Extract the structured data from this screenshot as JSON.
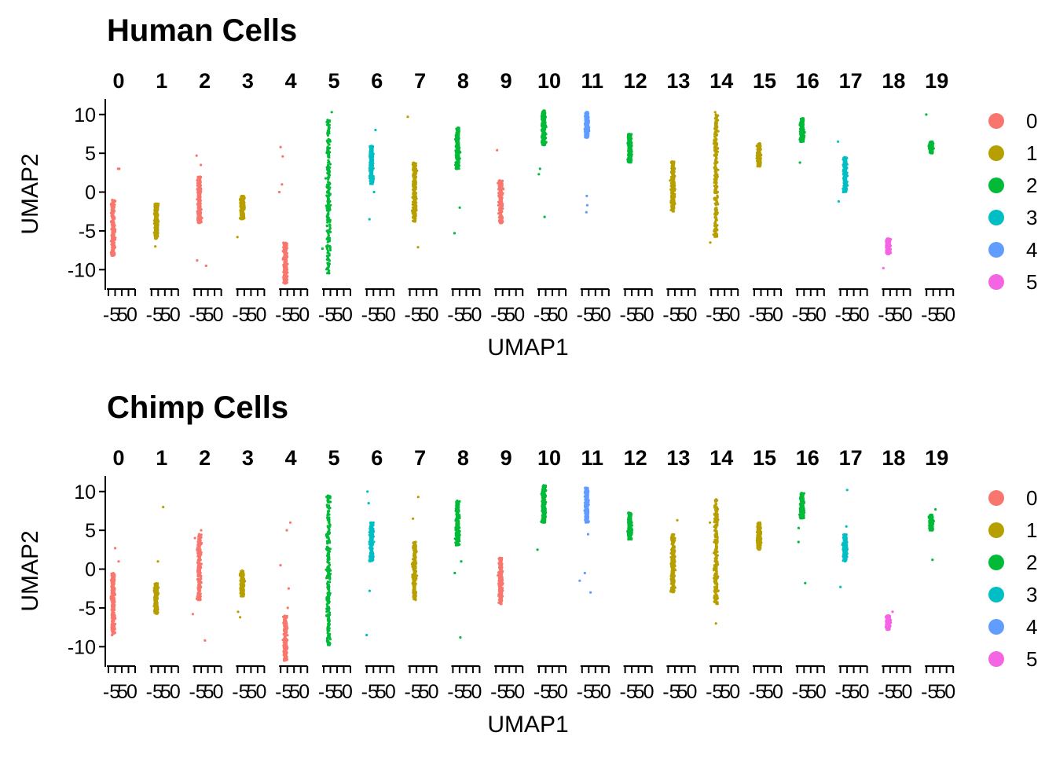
{
  "chart_data": [
    {
      "type": "scatter",
      "title": "Human Cells",
      "xlabel": "UMAP1",
      "ylabel": "UMAP2",
      "facets": [
        "0",
        "1",
        "2",
        "3",
        "4",
        "5",
        "6",
        "7",
        "8",
        "9",
        "10",
        "11",
        "12",
        "13",
        "14",
        "15",
        "16",
        "17",
        "18",
        "19"
      ],
      "ylim": [
        -12.5,
        12
      ],
      "y_ticks": [
        10,
        5,
        0,
        -5,
        -10
      ],
      "x_tick_labels": [
        "-5",
        "5",
        "0",
        "-5",
        "5",
        "0",
        "-5",
        "5",
        "0",
        "-5",
        "5",
        "0",
        "-5",
        "5",
        "0",
        "-5",
        "5",
        "0",
        "-5",
        "5",
        "0",
        "-5",
        "5",
        "0",
        "-5",
        "5",
        "0",
        "-5",
        "5",
        "0",
        "-5",
        "5",
        "0",
        "-5",
        "5",
        "0",
        "-5",
        "5",
        "0",
        "-5",
        "5",
        "0",
        "-5",
        "5",
        "0",
        "-5",
        "5",
        "0",
        "-5",
        "5",
        "0",
        "-5",
        "5",
        "0",
        "-5",
        "5",
        "0",
        "-5",
        "5",
        "0"
      ],
      "legend": {
        "position": "right",
        "entries": [
          "0",
          "1",
          "2",
          "3",
          "4",
          "5"
        ]
      },
      "grid": false,
      "clusters": [
        {
          "facet": "0",
          "color": "#F8766D",
          "y": [
            -8.2,
            -1.0
          ],
          "extra_y": [
            3.0,
            3.0
          ]
        },
        {
          "facet": "1",
          "color": "#B79F00",
          "y": [
            -6.0,
            -1.5
          ],
          "extra_y": [
            -7.0
          ]
        },
        {
          "facet": "2",
          "color": "#F8766D",
          "y": [
            -4.0,
            2.0
          ],
          "extra_y": [
            4.7,
            3.5,
            -8.8,
            -9.5
          ]
        },
        {
          "facet": "3",
          "color": "#B79F00",
          "y": [
            -3.5,
            -0.5
          ],
          "extra_y": [
            -5.8
          ]
        },
        {
          "facet": "4",
          "color": "#F8766D",
          "y": [
            -11.8,
            -6.5
          ],
          "extra_y": [
            5.8,
            4.6,
            1.0,
            0.0
          ]
        },
        {
          "facet": "5",
          "color": "#00BA38",
          "y": [
            -10.5,
            9.5
          ],
          "extra_y": [
            10.3,
            -7.3
          ]
        },
        {
          "facet": "6",
          "color": "#00BFC4",
          "y": [
            1.0,
            6.0
          ],
          "extra_y": [
            8.0,
            -3.5,
            0.0
          ]
        },
        {
          "facet": "7",
          "color": "#B79F00",
          "y": [
            -3.8,
            3.8
          ],
          "extra_y": [
            9.7,
            -7.1
          ]
        },
        {
          "facet": "8",
          "color": "#00BA38",
          "y": [
            3.0,
            8.3
          ],
          "extra_y": [
            -2.0,
            -5.3
          ]
        },
        {
          "facet": "9",
          "color": "#F8766D",
          "y": [
            -4.0,
            1.5
          ],
          "extra_y": [
            5.4
          ]
        },
        {
          "facet": "10",
          "color": "#00BA38",
          "y": [
            6.0,
            10.5
          ],
          "extra_y": [
            3.0,
            2.3,
            -3.2
          ]
        },
        {
          "facet": "11",
          "color": "#619CFF",
          "y": [
            7.0,
            10.3
          ],
          "extra_y": [
            -0.5,
            -1.7,
            -2.6
          ]
        },
        {
          "facet": "12",
          "color": "#00BA38",
          "y": [
            3.8,
            7.5
          ],
          "extra_y": []
        },
        {
          "facet": "13",
          "color": "#B79F00",
          "y": [
            -2.5,
            4.0
          ],
          "extra_y": []
        },
        {
          "facet": "14",
          "color": "#B79F00",
          "y": [
            -5.8,
            10.0
          ],
          "extra_y": [
            10.3,
            -6.5
          ]
        },
        {
          "facet": "15",
          "color": "#B79F00",
          "y": [
            3.3,
            6.3
          ],
          "extra_y": []
        },
        {
          "facet": "16",
          "color": "#00BA38",
          "y": [
            6.5,
            9.5
          ],
          "extra_y": [
            3.8
          ]
        },
        {
          "facet": "17",
          "color": "#00BFC4",
          "y": [
            0.0,
            4.5
          ],
          "extra_y": [
            -1.2,
            6.5
          ]
        },
        {
          "facet": "18",
          "color": "#F564E3",
          "y": [
            -8.0,
            -6.0
          ],
          "extra_y": [
            -9.8
          ]
        },
        {
          "facet": "19",
          "color": "#00BA38",
          "y": [
            5.0,
            6.5
          ],
          "extra_y": [
            10.0
          ]
        }
      ]
    },
    {
      "type": "scatter",
      "title": "Chimp Cells",
      "xlabel": "UMAP1",
      "ylabel": "UMAP2",
      "facets": [
        "0",
        "1",
        "2",
        "3",
        "4",
        "5",
        "6",
        "7",
        "8",
        "9",
        "10",
        "11",
        "12",
        "13",
        "14",
        "15",
        "16",
        "17",
        "18",
        "19"
      ],
      "ylim": [
        -12.5,
        12
      ],
      "y_ticks": [
        10,
        5,
        0,
        -5,
        -10
      ],
      "x_tick_labels": [
        "-5",
        "5",
        "0",
        "-5",
        "5",
        "0",
        "-5",
        "5",
        "0",
        "-5",
        "5",
        "0",
        "-5",
        "5",
        "0",
        "-5",
        "5",
        "0",
        "-5",
        "5",
        "0",
        "-5",
        "5",
        "0",
        "-5",
        "5",
        "0",
        "-5",
        "5",
        "0",
        "-5",
        "5",
        "0",
        "-5",
        "5",
        "0",
        "-5",
        "5",
        "0",
        "-5",
        "5",
        "0",
        "-5",
        "5",
        "0",
        "-5",
        "5",
        "0",
        "-5",
        "5",
        "0",
        "-5",
        "5",
        "0",
        "-5",
        "5",
        "0",
        "-5",
        "5",
        "0"
      ],
      "legend": {
        "position": "right",
        "entries": [
          "0",
          "1",
          "2",
          "3",
          "4",
          "5"
        ]
      },
      "grid": false,
      "clusters": [
        {
          "facet": "0",
          "color": "#F8766D",
          "y": [
            -8.5,
            -0.5
          ],
          "extra_y": [
            2.7,
            1.0
          ]
        },
        {
          "facet": "1",
          "color": "#B79F00",
          "y": [
            -5.8,
            -1.8
          ],
          "extra_y": [
            8.0,
            1.0
          ]
        },
        {
          "facet": "2",
          "color": "#F8766D",
          "y": [
            -4.0,
            4.5
          ],
          "extra_y": [
            5.0,
            4.0,
            -5.8,
            -9.2
          ]
        },
        {
          "facet": "3",
          "color": "#B79F00",
          "y": [
            -3.5,
            -0.2
          ],
          "extra_y": [
            -5.5,
            -6.2
          ]
        },
        {
          "facet": "4",
          "color": "#F8766D",
          "y": [
            -11.8,
            -6.0
          ],
          "extra_y": [
            6.0,
            5.0,
            0.5,
            -2.5,
            -5.0
          ]
        },
        {
          "facet": "5",
          "color": "#00BA38",
          "y": [
            -9.8,
            9.5
          ],
          "extra_y": [
            -6.0
          ]
        },
        {
          "facet": "6",
          "color": "#00BFC4",
          "y": [
            1.0,
            6.0
          ],
          "extra_y": [
            10.0,
            8.5,
            -2.8,
            -8.5
          ]
        },
        {
          "facet": "7",
          "color": "#B79F00",
          "y": [
            -4.0,
            3.5
          ],
          "extra_y": [
            9.3,
            6.5
          ]
        },
        {
          "facet": "8",
          "color": "#00BA38",
          "y": [
            3.0,
            8.8
          ],
          "extra_y": [
            1.0,
            -0.5,
            -8.8
          ]
        },
        {
          "facet": "9",
          "color": "#F8766D",
          "y": [
            -4.5,
            1.5
          ],
          "extra_y": []
        },
        {
          "facet": "10",
          "color": "#00BA38",
          "y": [
            6.0,
            10.8
          ],
          "extra_y": [
            2.5
          ]
        },
        {
          "facet": "11",
          "color": "#619CFF",
          "y": [
            6.0,
            10.5
          ],
          "extra_y": [
            -0.5,
            -1.5,
            -3.0,
            4.5
          ]
        },
        {
          "facet": "12",
          "color": "#00BA38",
          "y": [
            3.8,
            7.3
          ],
          "extra_y": []
        },
        {
          "facet": "13",
          "color": "#B79F00",
          "y": [
            -3.0,
            4.5
          ],
          "extra_y": [
            6.3
          ]
        },
        {
          "facet": "14",
          "color": "#B79F00",
          "y": [
            -4.5,
            9.0
          ],
          "extra_y": [
            6.0,
            -7.0
          ]
        },
        {
          "facet": "15",
          "color": "#B79F00",
          "y": [
            2.5,
            6.0
          ],
          "extra_y": []
        },
        {
          "facet": "16",
          "color": "#00BA38",
          "y": [
            6.5,
            9.8
          ],
          "extra_y": [
            5.3,
            3.5,
            -1.8
          ]
        },
        {
          "facet": "17",
          "color": "#00BFC4",
          "y": [
            1.0,
            4.5
          ],
          "extra_y": [
            10.2,
            5.5,
            -2.3
          ]
        },
        {
          "facet": "18",
          "color": "#F564E3",
          "y": [
            -7.8,
            -6.0
          ],
          "extra_y": [
            -5.5
          ]
        },
        {
          "facet": "19",
          "color": "#00BA38",
          "y": [
            5.0,
            7.0
          ],
          "extra_y": [
            7.7,
            1.2
          ]
        }
      ]
    }
  ],
  "legend_colors": [
    "#F8766D",
    "#B79F00",
    "#00BA38",
    "#00BFC4",
    "#619CFF",
    "#F564E3"
  ]
}
